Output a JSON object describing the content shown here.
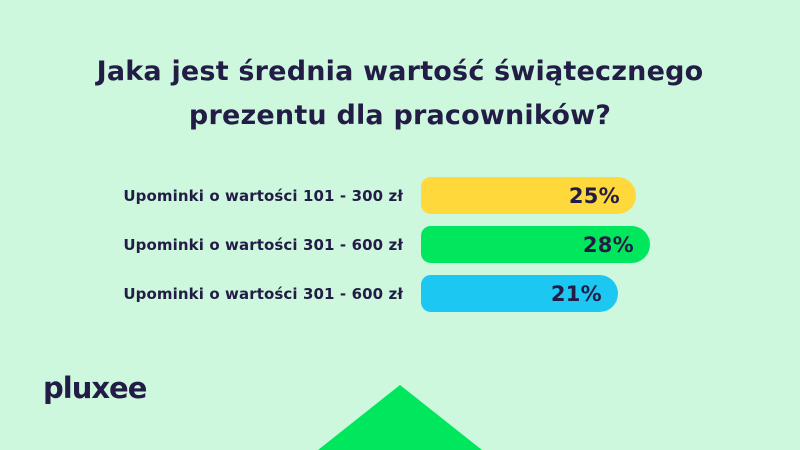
{
  "page": {
    "background": "#CDF8DD",
    "text_color": "#221C46"
  },
  "title": {
    "lines": [
      "Jaka jest średnia wartość świątecznego",
      "prezentu dla pracowników?"
    ]
  },
  "chart_data": {
    "type": "bar",
    "orientation": "horizontal",
    "categories": [
      "Upominki o wartości 101 - 300 zł",
      "Upominki o wartości 301 - 600 zł",
      "Upominki o wartości 301 - 600 zł"
    ],
    "values": [
      25,
      28,
      21
    ],
    "value_labels": [
      "25%",
      "28%",
      "21%"
    ],
    "bar_colors": [
      "#FFD83B",
      "#00E75D",
      "#1CC7F2"
    ],
    "value_label_position": "inside-right",
    "axis": "none",
    "grid": false,
    "legend": false
  },
  "footer": {
    "logo_text": "pluxee",
    "triangle_color": "#00E75D"
  }
}
